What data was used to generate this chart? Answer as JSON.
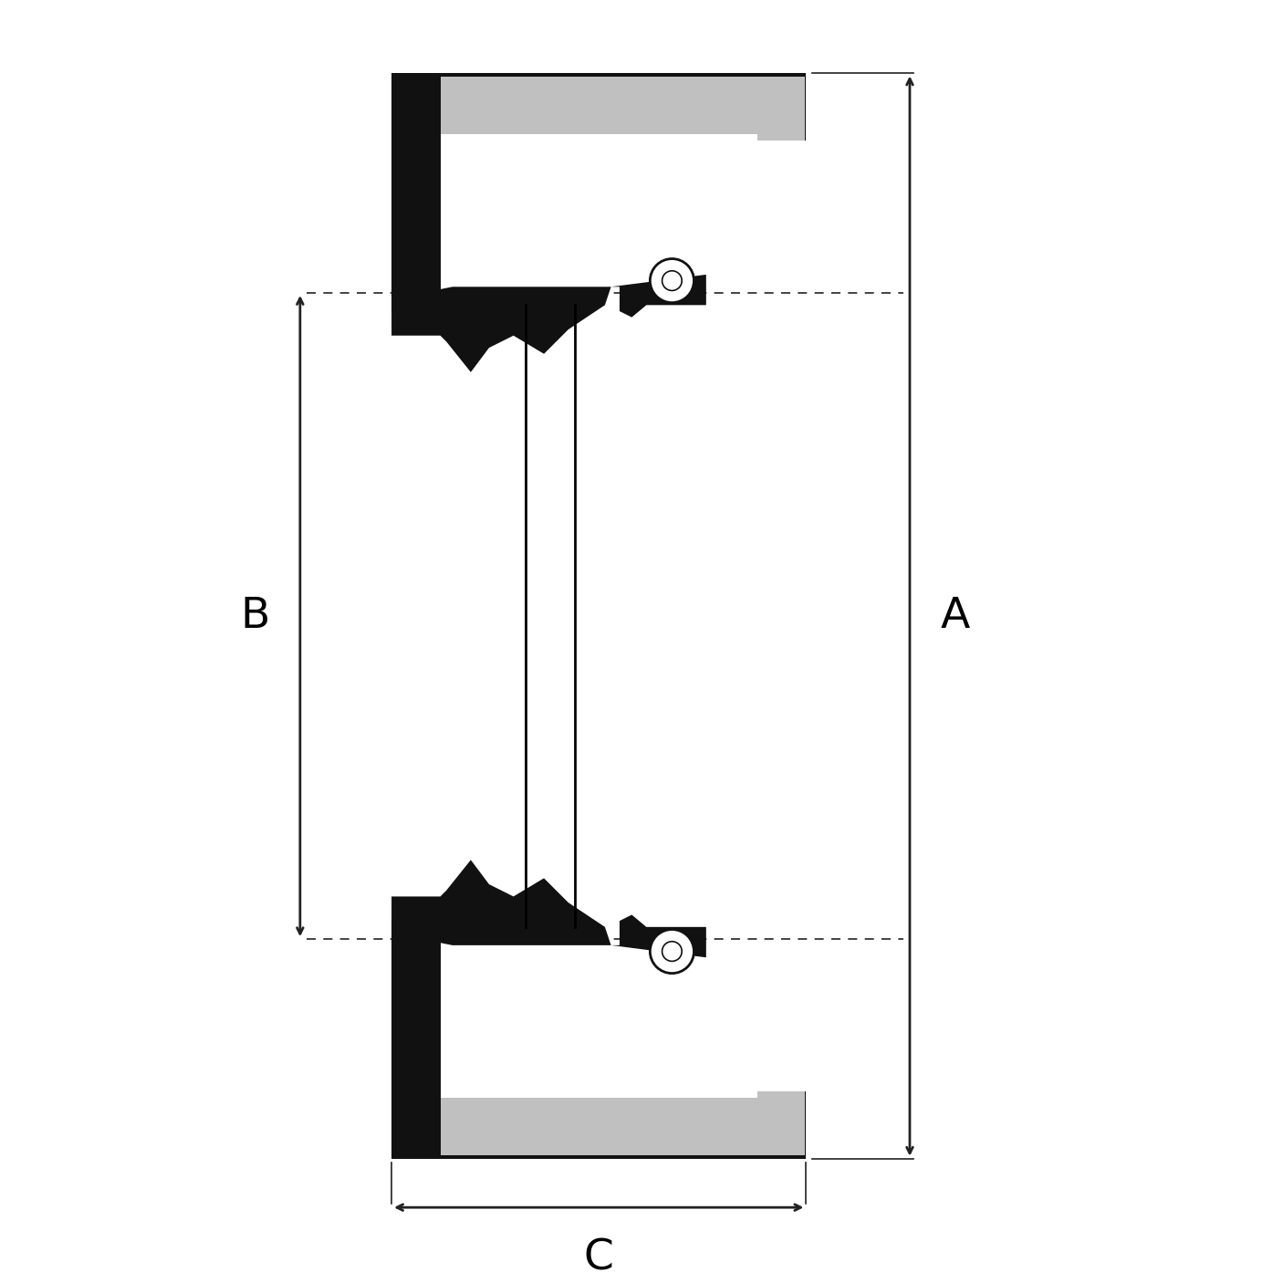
{
  "bg_color": "#ffffff",
  "fill_black": "#111111",
  "fill_gray": "#c0c0c0",
  "dim_color": "#222222",
  "label_A": "A",
  "label_B": "B",
  "label_C": "C",
  "figsize": [
    14.06,
    14.06
  ],
  "dpi": 100,
  "xlim": [
    0,
    100
  ],
  "ylim": [
    0,
    100
  ]
}
